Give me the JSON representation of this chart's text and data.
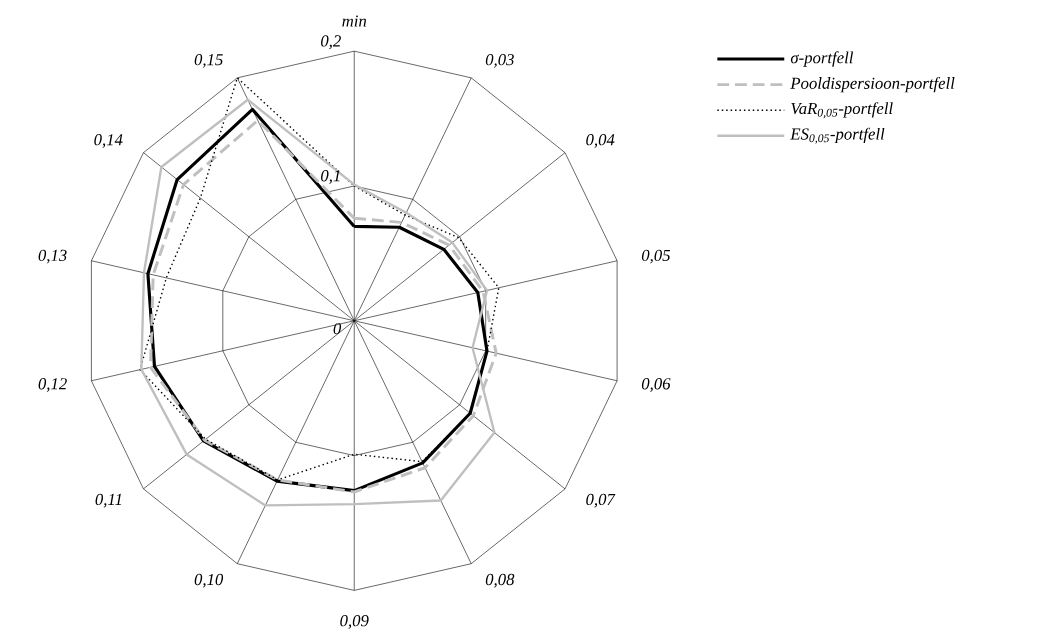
{
  "chart_data": {
    "type": "radar",
    "categories": [
      "min",
      "0,03",
      "0,04",
      "0,05",
      "0,06",
      "0,07",
      "0,08",
      "0,09",
      "0,10",
      "0,11",
      "0,12",
      "0,13",
      "0,14",
      "0,15"
    ],
    "series": [
      {
        "name": "σ-portfell",
        "color": "#000000",
        "line_style": "solid",
        "values": [
          0.07,
          0.077,
          0.085,
          0.094,
          0.101,
          0.11,
          0.117,
          0.126,
          0.132,
          0.143,
          0.152,
          0.157,
          0.168,
          0.174
        ]
      },
      {
        "name": "Pooldispersioon-portfell",
        "color": "#bfbfbf",
        "line_style": "dashed",
        "values": [
          0.076,
          0.081,
          0.09,
          0.098,
          0.108,
          0.113,
          0.121,
          0.127,
          0.131,
          0.142,
          0.155,
          0.153,
          0.162,
          0.165
        ]
      },
      {
        "name": "VaR$_{0,05}$-portfell",
        "color": "#000000",
        "line_style": "dotted",
        "values": [
          0.1,
          0.087,
          0.099,
          0.11,
          0.101,
          0.11,
          0.116,
          0.099,
          0.131,
          0.141,
          0.163,
          0.143,
          0.146,
          0.2
        ]
      },
      {
        "name": "ES$_{0,05}$-portfell",
        "color": "#bfbfbf",
        "line_style": "solid",
        "values": [
          0.101,
          0.089,
          0.093,
          0.101,
          0.09,
          0.133,
          0.148,
          0.136,
          0.152,
          0.159,
          0.162,
          0.16,
          0.183,
          0.182
        ]
      }
    ],
    "ylim": [
      0,
      0.2
    ],
    "yticks": [
      0,
      {
        "value": 0.1,
        "label": "0,1"
      },
      {
        "value": 0.2,
        "label": "0,2"
      }
    ],
    "grid": true,
    "legend": "top right"
  }
}
